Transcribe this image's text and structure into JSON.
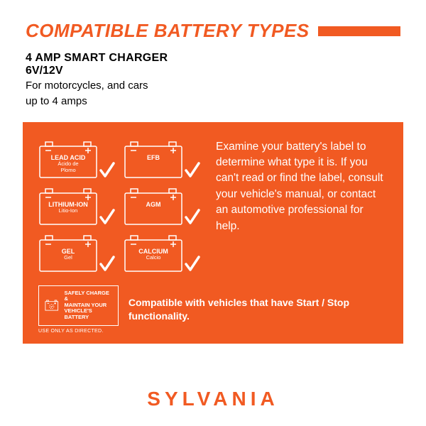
{
  "header": {
    "title": "COMPATIBLE BATTERY TYPES",
    "title_color": "#f15a22"
  },
  "subhead": {
    "product": "4 AMP SMART CHARGER",
    "voltage": "6V/12V",
    "desc_line1": "For motorcycles, and cars",
    "desc_line2": "up to 4 amps"
  },
  "panel": {
    "background_color": "#f15a22",
    "text_color": "#ffffff",
    "batteries": [
      {
        "label": "LEAD ACID",
        "sub": "Ácido de\nPlomo"
      },
      {
        "label": "EFB",
        "sub": ""
      },
      {
        "label": "LITHIUM-ION",
        "sub": "Litio-Ion"
      },
      {
        "label": "AGM",
        "sub": ""
      },
      {
        "label": "GEL",
        "sub": "Gel"
      },
      {
        "label": "CALCIUM",
        "sub": "Calcio"
      }
    ],
    "explain": "Examine your battery's label to determine what type it is. If you can't read or find the label, consult your vehicle's manual, or contact an automotive professional for help.",
    "safe_box": {
      "line1": "SAFELY CHARGE &",
      "line2": "MAINTAIN YOUR",
      "line3": "VEHICLE'S BATTERY"
    },
    "use_only": "USE ONLY AS DIRECTED.",
    "compat": "Compatible with vehicles that have Start / Stop functionality."
  },
  "brand": "SYLVANIA"
}
